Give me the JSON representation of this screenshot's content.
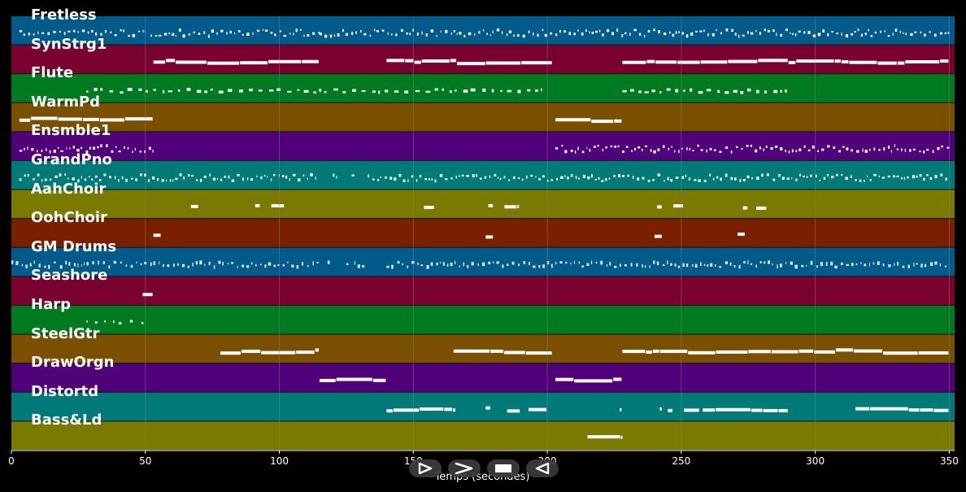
{
  "tracks": [
    {
      "name": "Fretless",
      "color": "#005a8a",
      "events": [
        [
          3,
          50
        ],
        [
          52,
          115
        ],
        [
          115,
          350
        ]
      ],
      "density": "dense"
    },
    {
      "name": "SynStrg1",
      "color": "#7a0030",
      "events": [
        [
          53,
          115
        ],
        [
          140,
          202
        ],
        [
          228,
          290
        ],
        [
          290,
          350
        ]
      ],
      "density": "solid"
    },
    {
      "name": "Flute",
      "color": "#007a20",
      "events": [
        [
          28,
          198
        ],
        [
          228,
          290
        ]
      ],
      "density": "dashed"
    },
    {
      "name": "WarmPd",
      "color": "#7a5000",
      "events": [
        [
          3,
          53
        ],
        [
          203,
          228
        ]
      ],
      "density": "solid"
    },
    {
      "name": "Ensmble1",
      "color": "#500078",
      "events": [
        [
          3,
          53
        ],
        [
          203,
          290
        ],
        [
          290,
          350
        ]
      ],
      "density": "dense"
    },
    {
      "name": "GrandPno",
      "color": "#007a78",
      "events": [
        [
          3,
          115
        ],
        [
          120,
          122
        ],
        [
          127,
          128
        ],
        [
          133,
          350
        ]
      ],
      "density": "dense"
    },
    {
      "name": "AahChoir",
      "color": "#7a7a00",
      "events": [
        [
          67,
          70
        ],
        [
          91,
          93
        ],
        [
          97,
          102
        ],
        [
          154,
          158
        ],
        [
          178,
          180
        ],
        [
          184,
          189
        ],
        [
          241,
          243
        ],
        [
          247,
          251
        ],
        [
          273,
          275
        ],
        [
          278,
          282
        ]
      ],
      "density": "solid"
    },
    {
      "name": "OohChoir",
      "color": "#7a2000",
      "events": [
        [
          53,
          56
        ],
        [
          177,
          180
        ],
        [
          240,
          243
        ],
        [
          271,
          274
        ]
      ],
      "density": "solid"
    },
    {
      "name": "GM Drums",
      "color": "#005a8a",
      "events": [
        [
          0,
          53
        ],
        [
          53,
          115
        ],
        [
          118,
          119
        ],
        [
          125,
          126
        ],
        [
          128,
          132
        ],
        [
          140,
          350
        ]
      ],
      "density": "drums"
    },
    {
      "name": "Seashore",
      "color": "#7a0030",
      "events": [
        [
          49,
          53
        ]
      ],
      "density": "solid"
    },
    {
      "name": "Harp",
      "color": "#007a20",
      "events": [
        [
          28,
          50
        ]
      ],
      "density": "sparse"
    },
    {
      "name": "SteelGtr",
      "color": "#7a5000",
      "events": [
        [
          78,
          115
        ],
        [
          165,
          202
        ],
        [
          228,
          350
        ]
      ],
      "density": "solid"
    },
    {
      "name": "DrawOrgn",
      "color": "#500078",
      "events": [
        [
          115,
          140
        ],
        [
          203,
          228
        ]
      ],
      "density": "solid"
    },
    {
      "name": "Distortd",
      "color": "#007a78",
      "events": [
        [
          140,
          166
        ],
        [
          177,
          179
        ],
        [
          185,
          190
        ],
        [
          193,
          200
        ],
        [
          227,
          228
        ],
        [
          242,
          243
        ],
        [
          245,
          247
        ],
        [
          251,
          257
        ],
        [
          258,
          290
        ],
        [
          315,
          350
        ]
      ],
      "density": "solid"
    },
    {
      "name": "Bass&Ld",
      "color": "#7a7a00",
      "events": [
        [
          215,
          228
        ]
      ],
      "density": "solid"
    }
  ],
  "axis": {
    "xlim": [
      0,
      352
    ],
    "ticks": [
      0,
      50,
      100,
      150,
      200,
      250,
      300,
      350
    ],
    "tick_labels": [
      "0",
      "50",
      "100",
      "150",
      "200",
      "250",
      "300",
      "350"
    ],
    "xlabel": "Temps (secondes)"
  },
  "controls": [
    {
      "name": "play-outline-button",
      "icon": "play-outline-icon"
    },
    {
      "name": "next-button",
      "icon": "chevron-right-icon"
    },
    {
      "name": "stop-button",
      "icon": "stop-icon"
    },
    {
      "name": "rewind-button",
      "icon": "rewind-outline-icon"
    }
  ],
  "colors": {
    "background": "#000000",
    "note": "#ffffff",
    "grid": "#888888"
  }
}
